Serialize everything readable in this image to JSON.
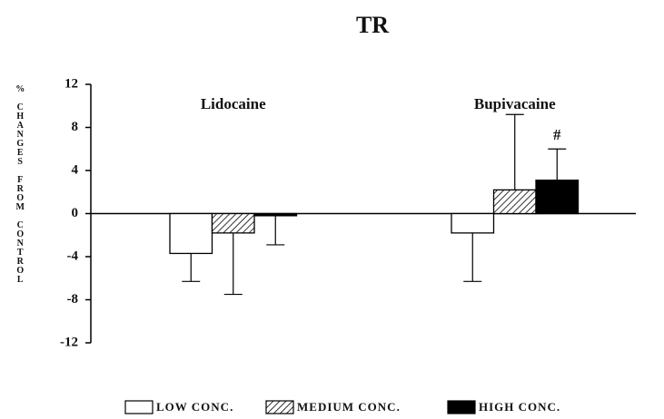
{
  "chart_data": {
    "type": "bar",
    "title": "TR",
    "y_label": "% CHANGES FROM CONTROL",
    "categories": [
      "Lidocaine",
      "Bupivacaine"
    ],
    "series": [
      {
        "name": "LOW CONC.",
        "color": "#ffffff",
        "values": [
          -3.7,
          -1.8
        ],
        "errors": [
          2.6,
          4.5
        ]
      },
      {
        "name": "MEDIUM CONC.",
        "color": "#000000",
        "pattern": "hatch",
        "values": [
          -1.8,
          2.2
        ],
        "errors": [
          5.7,
          7.0
        ]
      },
      {
        "name": "HIGH CONC.",
        "color": "#000000",
        "values": [
          -0.2,
          3.1
        ],
        "errors": [
          2.7,
          2.9
        ]
      }
    ],
    "annotations": [
      {
        "text": "#",
        "series": 2,
        "category": 1
      }
    ],
    "ylim": [
      -12,
      12
    ],
    "yticks": [
      -12,
      -8,
      -4,
      0,
      4,
      8,
      12
    ]
  }
}
